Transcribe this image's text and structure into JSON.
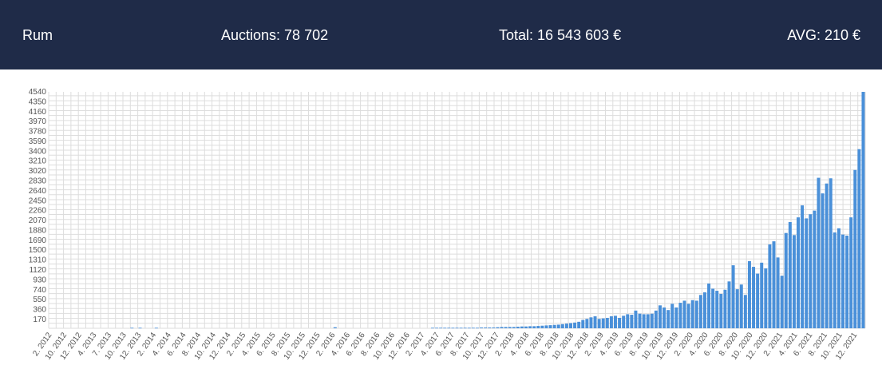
{
  "header": {
    "name": "Rum",
    "auctions": "Auctions: 78 702",
    "total": "Total: 16 543 603 €",
    "avg": "AVG: 210 €"
  },
  "colors": {
    "header_bg": "#1f2b48",
    "bar": "#4a90d9",
    "grid": "#dddddd"
  },
  "chart_data": {
    "type": "bar",
    "ylim": [
      0,
      4540
    ],
    "y_ticks": [
      170,
      360,
      550,
      740,
      930,
      1120,
      1310,
      1500,
      1690,
      1880,
      2070,
      2260,
      2450,
      2640,
      2830,
      3020,
      3210,
      3400,
      3590,
      3780,
      3970,
      4160,
      4350,
      4540
    ],
    "x_tick_labels": [
      "2. 2012",
      "10. 2012",
      "12. 2012",
      "4. 2013",
      "7. 2013",
      "10. 2013",
      "12. 2013",
      "2. 2014",
      "4. 2014",
      "6. 2014",
      "8. 2014",
      "10. 2014",
      "12. 2014",
      "2. 2015",
      "4. 2015",
      "6. 2015",
      "8. 2015",
      "10. 2015",
      "12. 2015",
      "2. 2016",
      "4. 2016",
      "6. 2016",
      "8. 2016",
      "10. 2016",
      "12. 2016",
      "2. 2017",
      "4. 2017",
      "6. 2017",
      "8. 2017",
      "10. 2017",
      "12. 2017",
      "2. 2018",
      "4. 2018",
      "6. 2018",
      "8. 2018",
      "10. 2018",
      "12. 2018",
      "2. 2019",
      "4. 2019",
      "6. 2019",
      "8. 2019",
      "10. 2019",
      "12. 2019",
      "2. 2020",
      "4. 2020",
      "6. 2020",
      "8. 2020",
      "10. 2020",
      "12. 2020",
      "2. 2021",
      "4. 2021",
      "6. 2021",
      "8. 2021",
      "10. 2021",
      "12. 2021"
    ],
    "values": [
      0,
      0,
      0,
      0,
      0,
      0,
      0,
      0,
      0,
      0,
      0,
      0,
      0,
      0,
      0,
      0,
      0,
      0,
      0,
      0,
      10,
      0,
      10,
      0,
      0,
      0,
      10,
      0,
      0,
      0,
      0,
      0,
      0,
      0,
      0,
      0,
      0,
      0,
      0,
      0,
      0,
      0,
      0,
      0,
      0,
      0,
      0,
      0,
      0,
      0,
      0,
      0,
      0,
      0,
      0,
      0,
      0,
      0,
      0,
      0,
      0,
      0,
      0,
      0,
      0,
      0,
      0,
      0,
      0,
      0,
      20,
      0,
      0,
      0,
      0,
      0,
      0,
      0,
      0,
      0,
      0,
      0,
      0,
      0,
      0,
      0,
      0,
      0,
      0,
      0,
      0,
      0,
      0,
      0,
      10,
      10,
      10,
      10,
      10,
      10,
      10,
      10,
      10,
      10,
      10,
      10,
      15,
      15,
      15,
      15,
      20,
      25,
      25,
      25,
      25,
      30,
      35,
      35,
      40,
      40,
      45,
      50,
      55,
      60,
      65,
      70,
      80,
      90,
      100,
      110,
      125,
      160,
      180,
      210,
      230,
      180,
      190,
      200,
      230,
      240,
      200,
      240,
      270,
      260,
      340,
      280,
      270,
      270,
      280,
      340,
      440,
      400,
      350,
      470,
      400,
      490,
      530,
      470,
      540,
      530,
      640,
      690,
      860,
      760,
      720,
      660,
      740,
      900,
      1210,
      750,
      840,
      640,
      1290,
      1180,
      1050,
      1260,
      1150,
      1610,
      1670,
      1360,
      1010,
      1830,
      2040,
      1790,
      2130,
      2360,
      2110,
      2190,
      2260,
      2890,
      2590,
      2780,
      2880,
      1840,
      1920,
      1800,
      1780,
      2130,
      3040,
      3440,
      4540
    ]
  }
}
